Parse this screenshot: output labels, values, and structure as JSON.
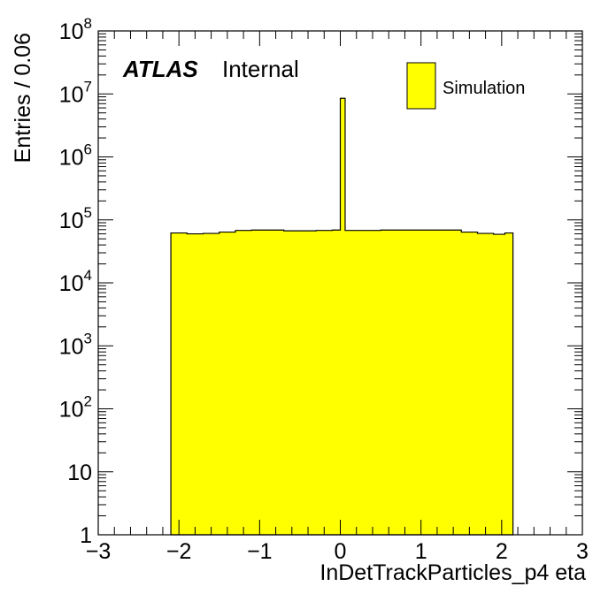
{
  "chart_data": {
    "type": "bar",
    "histogram": true,
    "bin_width": 0.06,
    "x_range": [
      -3,
      3
    ],
    "y_range": [
      1,
      100000000
    ],
    "yscale": "log",
    "xlabel": "InDetTrackParticles_p4 eta",
    "ylabel": "Entries / 0.06",
    "x_tick_labels": [
      "−3",
      "−2",
      "−1",
      "0",
      "1",
      "2",
      "3"
    ],
    "y_tick_labels": [
      {
        "base": "1",
        "exp": ""
      },
      {
        "base": "10",
        "exp": ""
      },
      {
        "base": "10",
        "exp": "2"
      },
      {
        "base": "10",
        "exp": "3"
      },
      {
        "base": "10",
        "exp": "4"
      },
      {
        "base": "10",
        "exp": "5"
      },
      {
        "base": "10",
        "exp": "6"
      },
      {
        "base": "10",
        "exp": "7"
      },
      {
        "base": "10",
        "exp": "8"
      }
    ],
    "atlas_label": "ATLAS",
    "atlas_status": "Internal",
    "legend_placement": "top-right",
    "series": [
      {
        "name": "Simulation",
        "color": "#ffff00",
        "edge_color": "#000000",
        "bins": [
          {
            "x": -2.1,
            "y": 62000
          },
          {
            "x": -1.9,
            "y": 60000
          },
          {
            "x": -1.7,
            "y": 61000
          },
          {
            "x": -1.5,
            "y": 64000
          },
          {
            "x": -1.3,
            "y": 68000
          },
          {
            "x": -1.1,
            "y": 69000
          },
          {
            "x": -0.9,
            "y": 69000
          },
          {
            "x": -0.7,
            "y": 67000
          },
          {
            "x": -0.5,
            "y": 67000
          },
          {
            "x": -0.3,
            "y": 68000
          },
          {
            "x": -0.1,
            "y": 69000
          },
          {
            "x": 0.0,
            "y": 8500000
          },
          {
            "x": 0.06,
            "y": 68000
          },
          {
            "x": 0.3,
            "y": 68000
          },
          {
            "x": 0.5,
            "y": 69000
          },
          {
            "x": 0.7,
            "y": 69000
          },
          {
            "x": 0.9,
            "y": 69000
          },
          {
            "x": 1.1,
            "y": 69000
          },
          {
            "x": 1.3,
            "y": 69000
          },
          {
            "x": 1.5,
            "y": 64000
          },
          {
            "x": 1.7,
            "y": 61000
          },
          {
            "x": 1.9,
            "y": 59000
          },
          {
            "x": 2.04,
            "y": 62000
          }
        ]
      }
    ]
  }
}
